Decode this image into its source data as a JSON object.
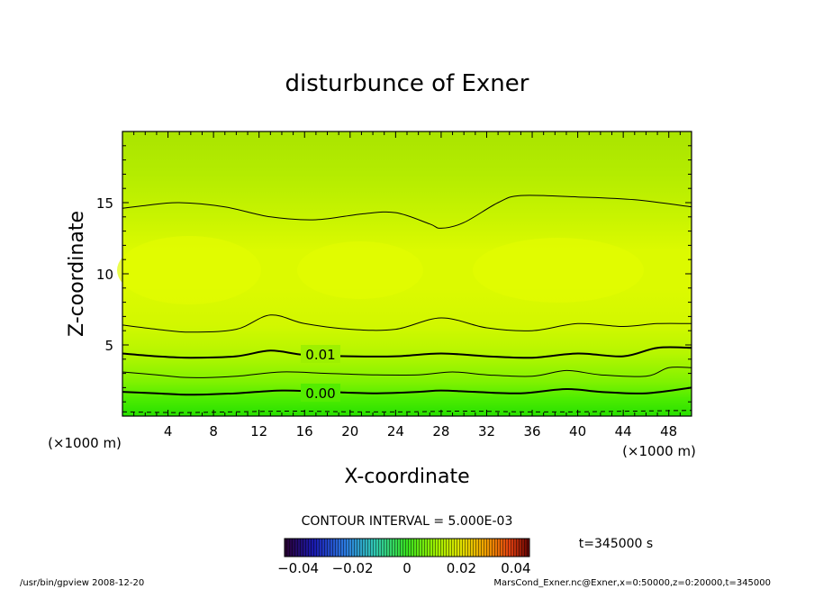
{
  "chart_data": {
    "type": "contour",
    "title": "disturbunce of Exner",
    "xlabel": "X-coordinate",
    "ylabel": "Z-coordinate",
    "x_unit": "(×1000 m)",
    "z_unit": "(×1000 m)",
    "xlim": [
      0,
      50
    ],
    "zlim": [
      0,
      20
    ],
    "x_ticks": [
      "4",
      "8",
      "12",
      "16",
      "20",
      "24",
      "28",
      "32",
      "36",
      "40",
      "44",
      "48"
    ],
    "z_ticks": [
      "5",
      "10",
      "15"
    ],
    "contour_interval_label": "CONTOUR INTERVAL = 5.000E-03",
    "colorbar": {
      "range": [
        -0.045,
        0.045
      ],
      "tick_labels": [
        "−0.04",
        "−0.02",
        "0",
        "0.02",
        "0.04"
      ],
      "tick_values": [
        -0.04,
        -0.02,
        0,
        0.02,
        0.04
      ]
    },
    "contour_labels": [
      "0.01",
      "0.00"
    ],
    "contours": [
      {
        "level": -0.005,
        "style": "dashed",
        "x": [
          0,
          5,
          10,
          15,
          20,
          25,
          30,
          35,
          40,
          45,
          50
        ],
        "z": [
          0.3,
          0.25,
          0.3,
          0.35,
          0.3,
          0.3,
          0.35,
          0.3,
          0.3,
          0.35,
          0.4
        ]
      },
      {
        "level": 0.0,
        "style": "thick",
        "x": [
          0,
          3,
          6,
          10,
          14,
          18,
          22,
          26,
          28,
          31,
          35,
          39,
          42,
          46,
          50
        ],
        "z": [
          1.7,
          1.6,
          1.5,
          1.6,
          1.8,
          1.7,
          1.6,
          1.7,
          1.8,
          1.7,
          1.6,
          1.9,
          1.7,
          1.6,
          2.0
        ]
      },
      {
        "level": 0.005,
        "style": "thin",
        "x": [
          0,
          3,
          6,
          10,
          14,
          18,
          22,
          26,
          29,
          32,
          36,
          39,
          42,
          46,
          48,
          50
        ],
        "z": [
          3.1,
          2.9,
          2.7,
          2.8,
          3.1,
          3.0,
          2.9,
          2.9,
          3.1,
          2.9,
          2.8,
          3.2,
          2.9,
          2.8,
          3.4,
          3.4
        ]
      },
      {
        "level": 0.01,
        "style": "thick",
        "x": [
          0,
          3,
          6,
          10,
          13,
          16,
          20,
          24,
          28,
          32,
          36,
          40,
          44,
          47,
          50
        ],
        "z": [
          4.4,
          4.2,
          4.1,
          4.2,
          4.6,
          4.3,
          4.2,
          4.2,
          4.4,
          4.2,
          4.1,
          4.4,
          4.2,
          4.8,
          4.8
        ]
      },
      {
        "level": 0.015,
        "style": "thin",
        "x": [
          0,
          3,
          6,
          10,
          13,
          16,
          20,
          24,
          28,
          32,
          36,
          40,
          44,
          47,
          50
        ],
        "z": [
          6.4,
          6.1,
          5.9,
          6.1,
          7.1,
          6.5,
          6.1,
          6.1,
          6.9,
          6.2,
          6.0,
          6.5,
          6.3,
          6.5,
          6.5
        ]
      },
      {
        "level": 0.015,
        "style": "thin",
        "x": [
          0,
          2,
          5,
          9,
          13,
          17,
          21,
          24,
          27,
          28,
          30,
          33,
          35,
          40,
          45,
          50
        ],
        "z": [
          14.6,
          14.8,
          15.0,
          14.7,
          14.0,
          13.8,
          14.2,
          14.3,
          13.5,
          13.2,
          13.6,
          15.0,
          15.5,
          15.4,
          15.2,
          14.7
        ]
      }
    ],
    "time_label": "t=345000 s",
    "footer_left": "/usr/bin/gpview   2008-12-20",
    "footer_right": "MarsCond_Exner.nc@Exner,x=0:50000,z=0:20000,t=345000"
  }
}
